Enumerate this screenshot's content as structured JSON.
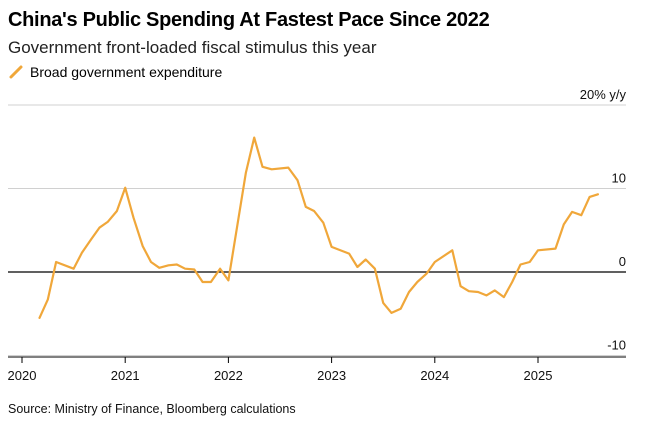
{
  "header": {
    "title": "China's Public Spending At Fastest Pace Since 2022",
    "subtitle": "Government front-loaded fiscal stimulus this year"
  },
  "footer": {
    "source": "Source: Ministry of Finance, Bloomberg calculations"
  },
  "chart_data": {
    "type": "line",
    "title": "China's Public Spending At Fastest Pace Since 2022",
    "subtitle": "Government front-loaded fiscal stimulus this year",
    "xlabel": "",
    "ylabel": "",
    "y_unit_label": "20% y/y",
    "ylim": [
      -10,
      20
    ],
    "xlim": [
      2020,
      2025.75
    ],
    "yticks": [
      {
        "value": 20,
        "label": "20% y/y"
      },
      {
        "value": 10,
        "label": "10"
      },
      {
        "value": 0,
        "label": "0"
      },
      {
        "value": -10,
        "label": "-10"
      }
    ],
    "xticks": [
      "2020",
      "2021",
      "2022",
      "2023",
      "2024",
      "2025"
    ],
    "grid": "horizontal",
    "legend_position": "top-left",
    "colors": {
      "series": "#f0a73a",
      "grid": "#d0d0d0",
      "zero": "#000000"
    },
    "series": [
      {
        "name": "Broad government expenditure",
        "x": [
          2020.17,
          2020.25,
          2020.33,
          2020.5,
          2020.58,
          2020.67,
          2020.75,
          2020.83,
          2020.92,
          2021.0,
          2021.08,
          2021.17,
          2021.25,
          2021.33,
          2021.42,
          2021.5,
          2021.58,
          2021.67,
          2021.75,
          2021.83,
          2021.92,
          2022.0,
          2022.17,
          2022.25,
          2022.33,
          2022.42,
          2022.58,
          2022.67,
          2022.75,
          2022.83,
          2022.92,
          2023.0,
          2023.17,
          2023.25,
          2023.33,
          2023.42,
          2023.5,
          2023.58,
          2023.67,
          2023.75,
          2023.83,
          2023.92,
          2024.0,
          2024.17,
          2024.25,
          2024.33,
          2024.42,
          2024.5,
          2024.58,
          2024.67,
          2024.75,
          2024.83,
          2024.92,
          2025.0,
          2025.17,
          2025.25,
          2025.33,
          2025.42,
          2025.5,
          2025.58
        ],
        "values": [
          -5.5,
          -3.3,
          1.2,
          0.4,
          2.3,
          3.9,
          5.3,
          6.0,
          7.3,
          10.1,
          6.5,
          3.1,
          1.2,
          0.5,
          0.8,
          0.9,
          0.4,
          0.3,
          -1.2,
          -1.2,
          0.4,
          -1.0,
          11.9,
          16.1,
          12.6,
          12.3,
          12.5,
          11.0,
          7.8,
          7.3,
          5.9,
          3.0,
          2.2,
          0.6,
          1.5,
          0.4,
          -3.7,
          -4.9,
          -4.4,
          -2.4,
          -1.2,
          -0.2,
          1.2,
          2.6,
          -1.7,
          -2.3,
          -2.4,
          -2.8,
          -2.2,
          -3.0,
          -1.2,
          0.9,
          1.2,
          2.6,
          2.8,
          5.7,
          7.2,
          6.8,
          9.0,
          9.3
        ]
      }
    ]
  }
}
